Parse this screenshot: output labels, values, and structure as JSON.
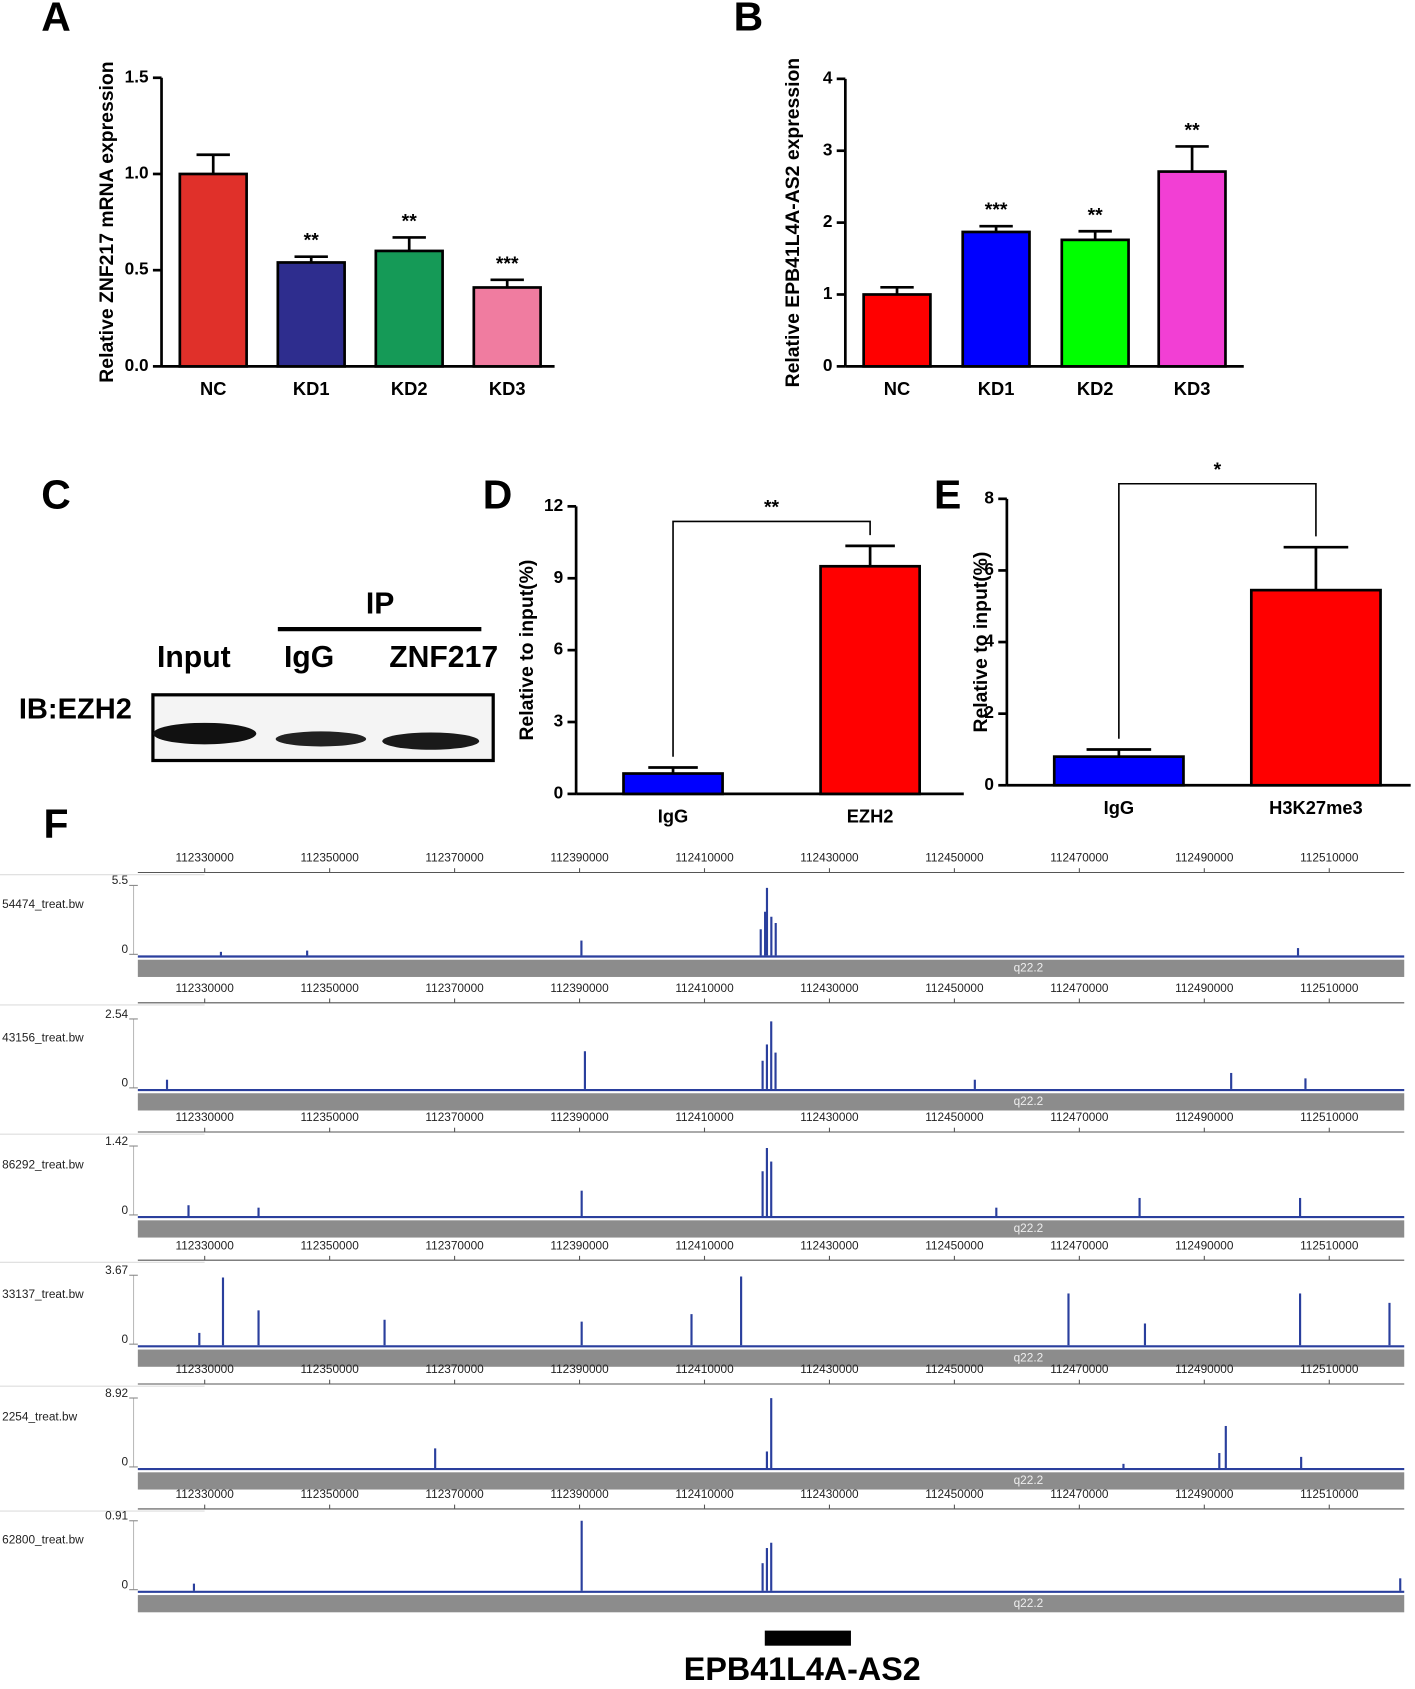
{
  "chart_data": [
    {
      "type": "bar",
      "panel": "A",
      "y_label": "Relative ZNF217 mRNA expression",
      "categories": [
        "NC",
        "KD1",
        "KD2",
        "KD3"
      ],
      "values": [
        1.0,
        0.54,
        0.6,
        0.41
      ],
      "errors": [
        0.1,
        0.03,
        0.07,
        0.04
      ],
      "annotations": [
        null,
        "**",
        "**",
        "***"
      ],
      "colors": [
        "#e0302a",
        "#2e2d8e",
        "#159a57",
        "#f07ca0"
      ],
      "ylim": [
        0,
        1.5
      ],
      "yticks": [
        {
          "value": 0,
          "label": "0.0"
        },
        {
          "value": 0.5,
          "label": "0.5"
        },
        {
          "value": 1,
          "label": "1.0"
        },
        {
          "value": 1.5,
          "label": "1.5"
        }
      ]
    },
    {
      "type": "bar",
      "panel": "B",
      "y_label": "Relative EPB41L4A-AS2 expression",
      "categories": [
        "NC",
        "KD1",
        "KD2",
        "KD3"
      ],
      "values": [
        1.0,
        1.87,
        1.76,
        2.71
      ],
      "errors": [
        0.1,
        0.08,
        0.12,
        0.35
      ],
      "annotations": [
        null,
        "***",
        "**",
        "**"
      ],
      "colors": [
        "#ff0000",
        "#0000ff",
        "#00ff00",
        "#f23fd4"
      ],
      "ylim": [
        0,
        4
      ],
      "yticks": [
        0,
        1,
        2,
        3,
        4
      ]
    },
    {
      "type": "bar",
      "panel": "D",
      "y_label": "Relative to input(%)",
      "categories": [
        "IgG",
        "EZH2"
      ],
      "values": [
        0.85,
        9.5
      ],
      "errors": [
        0.25,
        0.85
      ],
      "bracket_label": "**",
      "colors": [
        "#0000ff",
        "#ff0000"
      ],
      "ylim": [
        0,
        12
      ],
      "yticks": [
        0,
        3,
        6,
        9,
        12
      ]
    },
    {
      "type": "bar",
      "panel": "E",
      "y_label": "Relative to input(%)",
      "categories": [
        "IgG",
        "H3K27me3"
      ],
      "values": [
        0.8,
        5.45
      ],
      "errors": [
        0.2,
        1.2
      ],
      "bracket_label": "*",
      "colors": [
        "#0000ff",
        "#ff0000"
      ],
      "ylim": [
        0,
        8
      ],
      "yticks": [
        0,
        2,
        4,
        6,
        8
      ]
    },
    {
      "type": "genome_track",
      "panel": "F",
      "band_label": "q22.2",
      "color": "#2a3f9d",
      "xlim": [
        112319300,
        112522000
      ],
      "xticks": [
        112330000,
        112350000,
        112370000,
        112390000,
        112410000,
        112430000,
        112450000,
        112470000,
        112490000,
        112510000
      ],
      "gene": {
        "label": "EPB41L4A-AS2",
        "start": 112419650,
        "end": 112433440
      },
      "tracks": [
        {
          "name": "54474_treat.bw",
          "ylim": [
            0,
            5.5
          ],
          "yticks": [
            0,
            5.5
          ],
          "x": [
            112332600,
            112346400,
            112390300,
            112419000,
            112419700,
            112420000,
            112420700,
            112421400,
            112505000
          ],
          "values": [
            0.2,
            0.3,
            1.1,
            2.0,
            3.4,
            5.3,
            3.0,
            2.5,
            0.5
          ]
        },
        {
          "name": "43156_treat.bw",
          "ylim": [
            0,
            2.54
          ],
          "yticks": [
            0,
            2.54
          ],
          "x": [
            112323970,
            112390860,
            112419300,
            112419990,
            112420680,
            112421370,
            112453270,
            112494300,
            112506190
          ],
          "values": [
            0.3,
            1.35,
            1.0,
            1.6,
            2.45,
            1.3,
            0.3,
            0.55,
            0.35
          ]
        },
        {
          "name": "86292_treat.bw",
          "ylim": [
            0,
            1.42
          ],
          "yticks": [
            0,
            1.42
          ],
          "x": [
            112327410,
            112338620,
            112390340,
            112419300,
            112419990,
            112420680,
            112456710,
            112479640,
            112505330
          ],
          "values": [
            0.2,
            0.15,
            0.5,
            0.9,
            1.38,
            1.1,
            0.15,
            0.35,
            0.35
          ]
        },
        {
          "name": "33137_treat.bw",
          "ylim": [
            0,
            3.67
          ],
          "yticks": [
            0,
            3.67
          ],
          "x": [
            112329140,
            112332930,
            112338620,
            112358790,
            112390340,
            112407920,
            112415860,
            112468260,
            112480500,
            112505330,
            112519640
          ],
          "values": [
            0.6,
            3.55,
            1.8,
            1.3,
            1.2,
            1.6,
            3.6,
            2.7,
            1.1,
            2.7,
            2.2
          ]
        },
        {
          "name": "2254_treat.bw",
          "ylim": [
            0,
            8.92
          ],
          "yticks": [
            0,
            8.92
          ],
          "x": [
            112366890,
            112419990,
            112420680,
            112477060,
            112492400,
            112493440,
            112505500
          ],
          "values": [
            2.4,
            2.0,
            8.9,
            0.4,
            1.8,
            5.3,
            1.3
          ]
        },
        {
          "name": "62800_treat.bw",
          "ylim": [
            0,
            0.91
          ],
          "yticks": [
            0,
            0.91
          ],
          "x": [
            112328280,
            112390340,
            112419300,
            112419990,
            112420680,
            112521360
          ],
          "values": [
            0.08,
            0.91,
            0.35,
            0.55,
            0.62,
            0.15
          ]
        }
      ]
    }
  ],
  "blot": {
    "panel": "C",
    "ip_label": "IP",
    "lanes": [
      "Input",
      "IgG",
      "ZNF217"
    ],
    "antibody": "IB:EZH2"
  }
}
